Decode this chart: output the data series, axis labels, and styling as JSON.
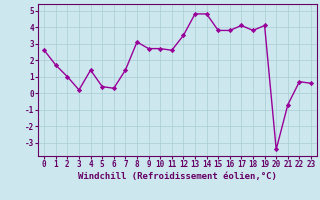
{
  "x": [
    0,
    1,
    2,
    3,
    4,
    5,
    6,
    7,
    8,
    9,
    10,
    11,
    12,
    13,
    14,
    15,
    16,
    17,
    18,
    19,
    20,
    21,
    22,
    23
  ],
  "y": [
    2.6,
    1.7,
    1.0,
    0.2,
    1.4,
    0.4,
    0.3,
    1.4,
    3.1,
    2.7,
    2.7,
    2.6,
    3.5,
    4.8,
    4.8,
    3.8,
    3.8,
    4.1,
    3.8,
    4.1,
    -3.4,
    -0.7,
    0.7,
    0.6
  ],
  "line_color": "#990099",
  "marker": "D",
  "markersize": 2.2,
  "linewidth": 1.0,
  "xlabel": "Windchill (Refroidissement éolien,°C)",
  "xlabel_fontsize": 6.5,
  "ylim": [
    -3.8,
    5.4
  ],
  "xlim": [
    -0.5,
    23.5
  ],
  "yticks": [
    -3,
    -2,
    -1,
    0,
    1,
    2,
    3,
    4,
    5
  ],
  "xticks": [
    0,
    1,
    2,
    3,
    4,
    5,
    6,
    7,
    8,
    9,
    10,
    11,
    12,
    13,
    14,
    15,
    16,
    17,
    18,
    19,
    20,
    21,
    22,
    23
  ],
  "bg_color": "#cce8ee",
  "grid_color": "#aaccd4",
  "tick_fontsize": 5.5,
  "spine_color": "#660066",
  "xlabel_color": "#660066"
}
